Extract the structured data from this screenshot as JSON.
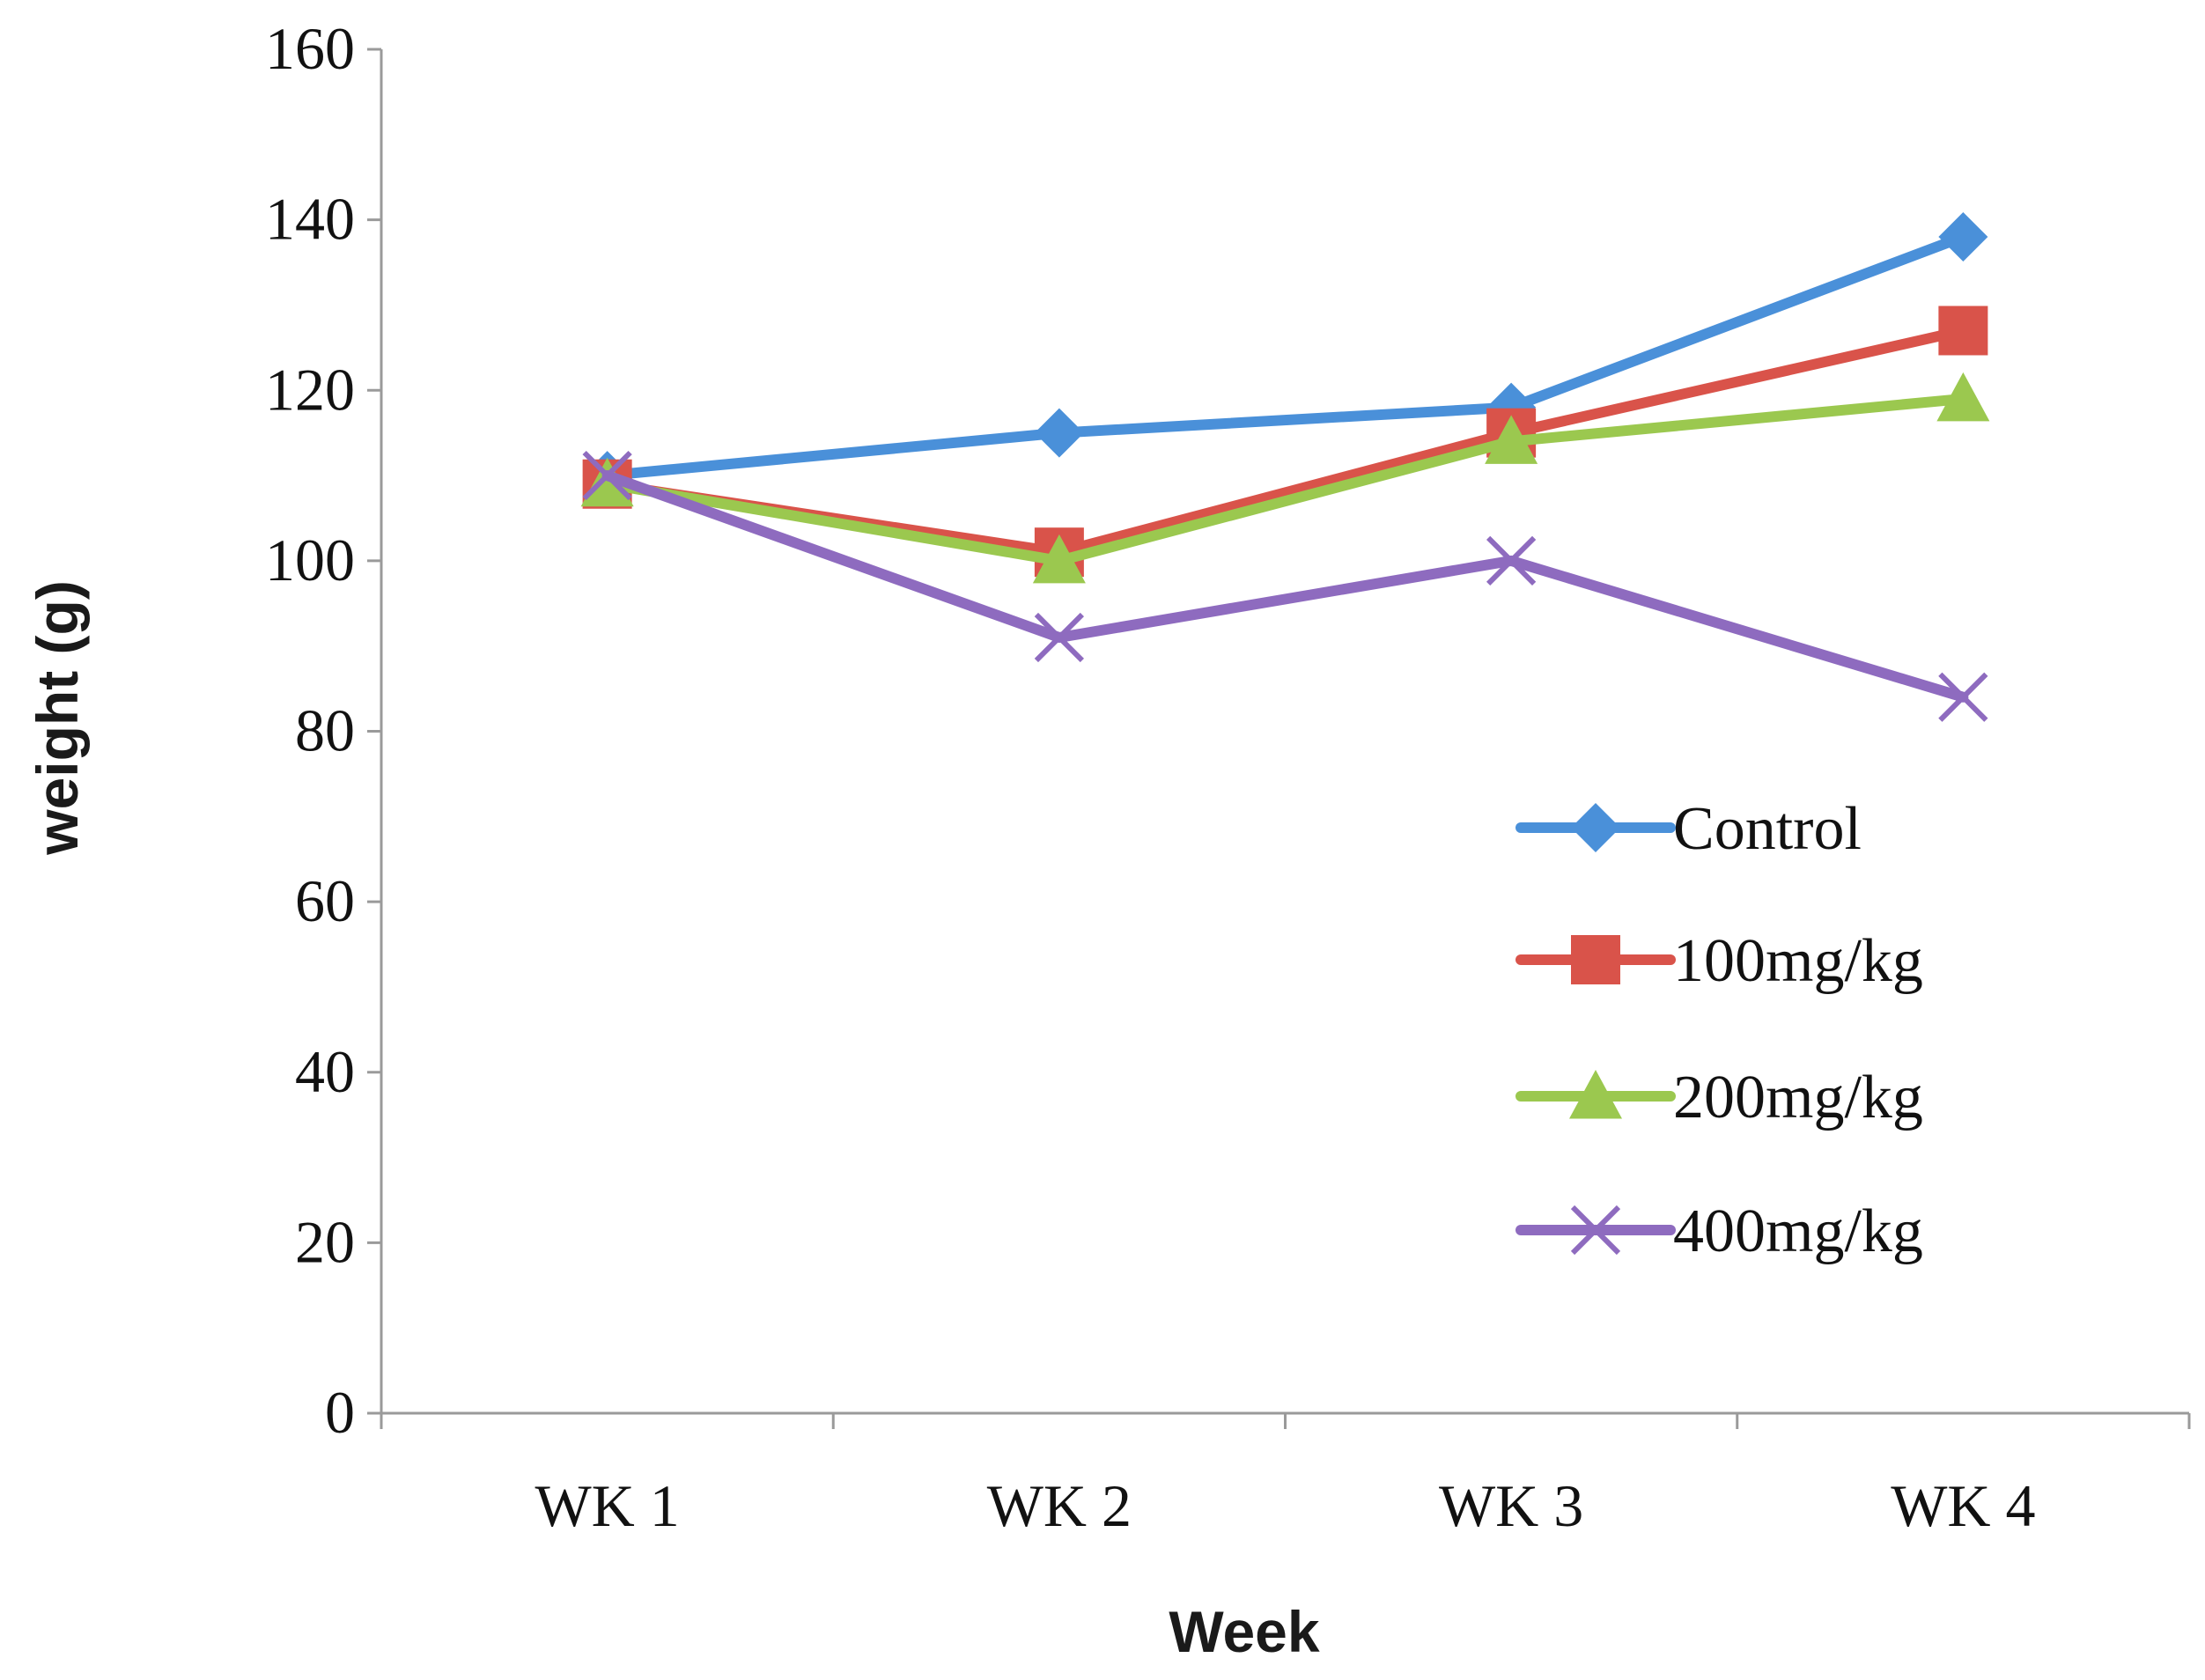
{
  "chart_data": {
    "type": "line",
    "title": "",
    "xlabel": "Week",
    "ylabel": "weight (g)",
    "categories": [
      "WK 1",
      "WK 2",
      "WK 3",
      "WK 4"
    ],
    "ylim": [
      0,
      160
    ],
    "yticks": [
      0,
      20,
      40,
      60,
      80,
      100,
      120,
      140,
      160
    ],
    "grid": false,
    "legend_position": "right",
    "series": [
      {
        "name": "Control",
        "marker": "diamond",
        "color": "#4a90d9",
        "values": [
          110,
          115,
          118,
          138
        ]
      },
      {
        "name": "100mg/kg",
        "marker": "square",
        "color": "#d9534a",
        "values": [
          109,
          101,
          115,
          127
        ]
      },
      {
        "name": "200mg/kg",
        "marker": "triangle",
        "color": "#9bc84f",
        "values": [
          109,
          100,
          114,
          119
        ]
      },
      {
        "name": "400mg/kg",
        "marker": "x",
        "color": "#8e6bbf",
        "values": [
          110,
          91,
          100,
          84
        ]
      }
    ]
  }
}
